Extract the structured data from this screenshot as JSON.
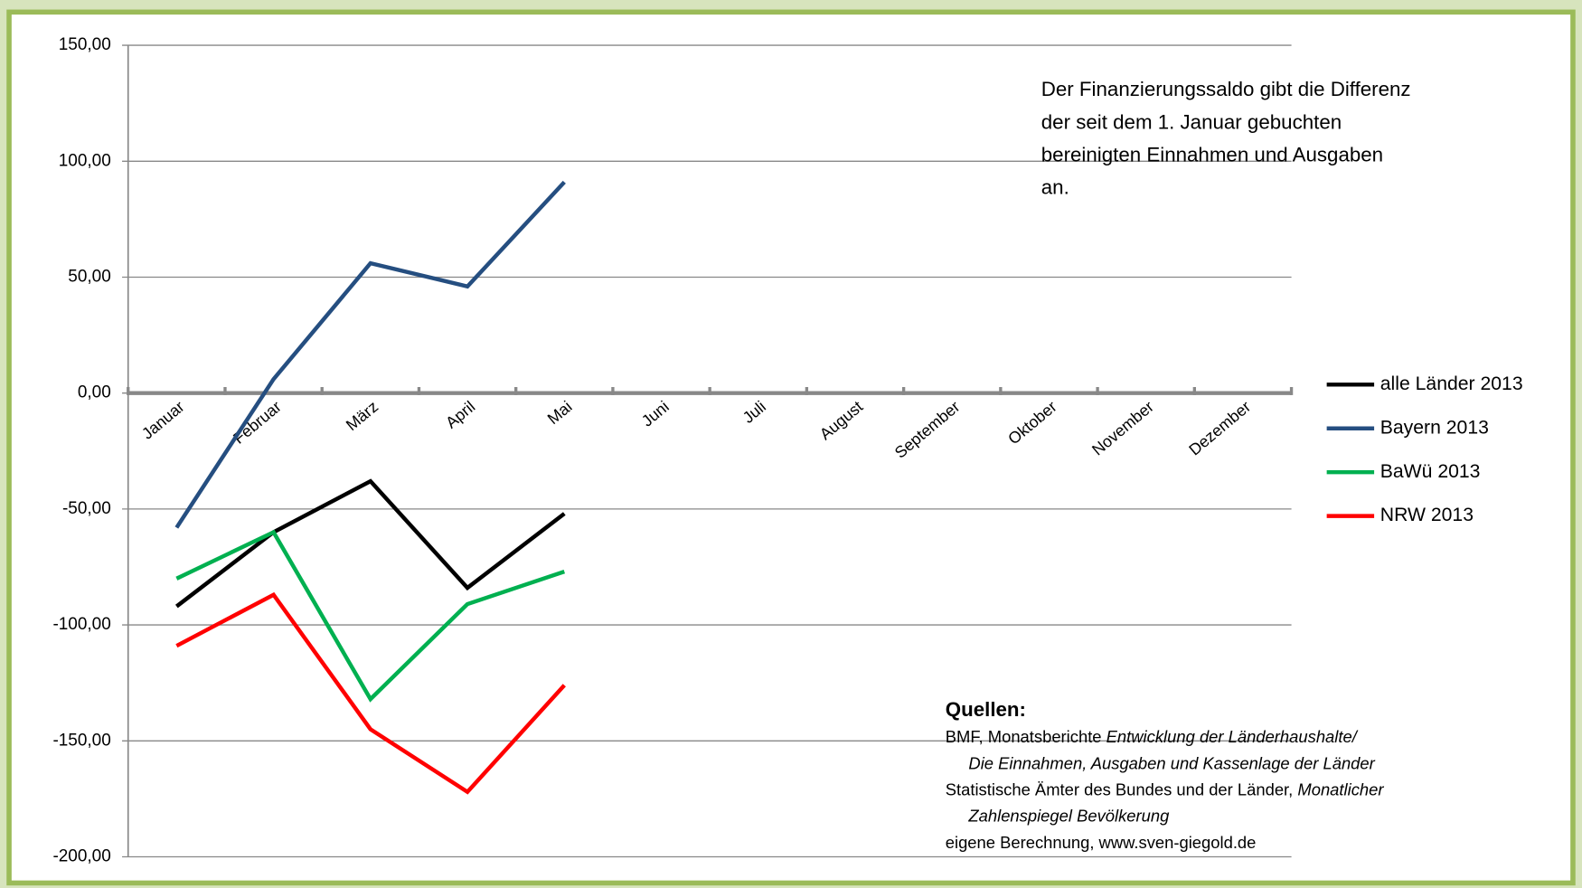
{
  "chart_data": {
    "type": "line",
    "categories": [
      "Januar",
      "Februar",
      "März",
      "April",
      "Mai",
      "Juni",
      "Juli",
      "August",
      "September",
      "Oktober",
      "November",
      "Dezember"
    ],
    "series": [
      {
        "name": "alle Länder 2013",
        "color": "#000000",
        "values": [
          -92,
          -60,
          -38,
          -84,
          -52,
          null,
          null,
          null,
          null,
          null,
          null,
          null
        ]
      },
      {
        "name": "Bayern 2013",
        "color": "#254e80",
        "values": [
          -58,
          6,
          56,
          46,
          91,
          null,
          null,
          null,
          null,
          null,
          null,
          null
        ]
      },
      {
        "name": "BaWü 2013",
        "color": "#00b050",
        "values": [
          -80,
          -60,
          -132,
          -91,
          -77,
          null,
          null,
          null,
          null,
          null,
          null,
          null
        ]
      },
      {
        "name": "NRW 2013",
        "color": "#ff0000",
        "values": [
          -109,
          -87,
          -145,
          -172,
          -126,
          null,
          null,
          null,
          null,
          null,
          null,
          null
        ]
      }
    ],
    "ylim": [
      -200,
      150
    ],
    "yticks": [
      {
        "value": -200,
        "label": "-200,00"
      },
      {
        "value": -150,
        "label": "-150,00"
      },
      {
        "value": -100,
        "label": "-100,00"
      },
      {
        "value": -50,
        "label": "-50,00"
      },
      {
        "value": 0,
        "label": "0,00"
      },
      {
        "value": 50,
        "label": "50,00"
      },
      {
        "value": 100,
        "label": "100,00"
      },
      {
        "value": 150,
        "label": "150,00"
      }
    ],
    "grid": true,
    "legend": "right",
    "annotation": [
      "Der Finanzierungssaldo gibt die Differenz",
      "der seit dem 1. Januar gebuchten",
      "bereinigten Einnahmen und Ausgaben",
      "an."
    ],
    "sources_title": "Quellen:",
    "sources": [
      [
        {
          "text": "BMF,  Monatsberichte ",
          "italic": false
        },
        {
          "text": "Entwicklung der Länderhaushalte/",
          "italic": true
        }
      ],
      [
        {
          "text": "Die Einnahmen, Ausgaben und Kassenlage der Länder",
          "italic": true
        }
      ],
      [
        {
          "text": "Statistische Ämter des Bundes und der Länder, ",
          "italic": false
        },
        {
          "text": "Monatlicher",
          "italic": true
        }
      ],
      [
        {
          "text": "Zahlenspiegel Bevölkerung",
          "italic": true
        }
      ],
      [
        {
          "text": "eigene Berechnung, www.sven-giegold.de",
          "italic": false
        }
      ]
    ]
  }
}
